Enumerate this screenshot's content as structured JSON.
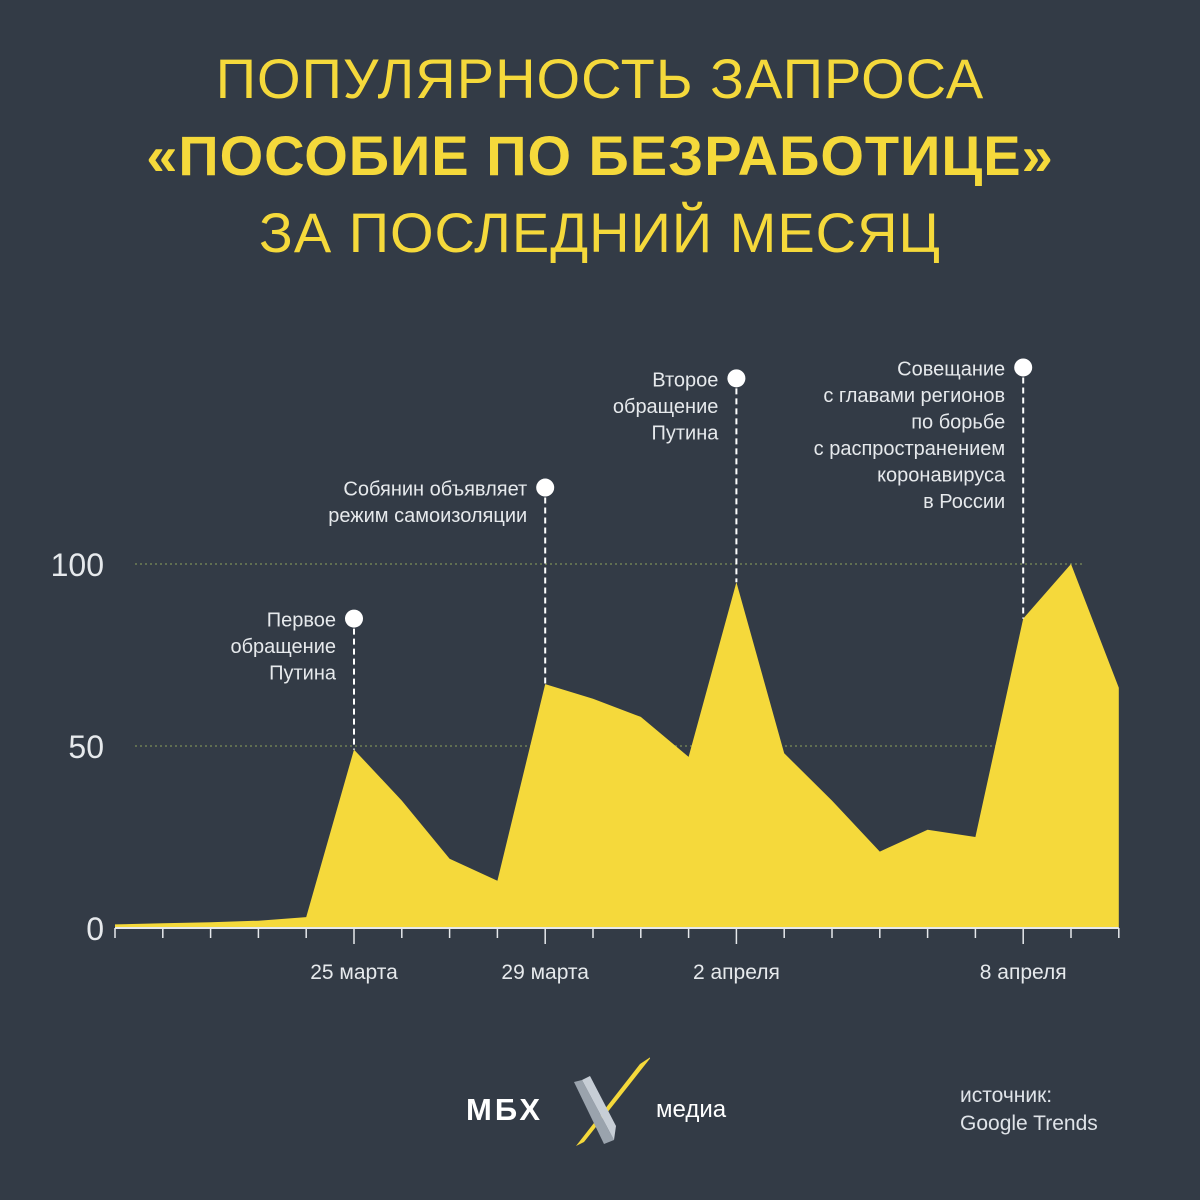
{
  "title": {
    "line1": "Популярность запроса",
    "line2": "«Пособие по безработице»",
    "line3": "за последний месяц"
  },
  "colors": {
    "background": "#333b46",
    "accent": "#f5d93b",
    "gridline": "#6f7f55",
    "text": "#e6e9ec"
  },
  "chart_data": {
    "type": "area",
    "ylim": [
      0,
      100
    ],
    "grid": true,
    "y_ticks": [
      {
        "value": 0,
        "label": "0"
      },
      {
        "value": 50,
        "label": "50"
      },
      {
        "value": 100,
        "label": "100"
      }
    ],
    "x_ticks": [
      {
        "day": 5,
        "label": "25 марта"
      },
      {
        "day": 9,
        "label": "29 марта"
      },
      {
        "day": 13,
        "label": "2 апреля"
      },
      {
        "day": 19,
        "label": "8 апреля"
      }
    ],
    "values": [
      {
        "day": 0,
        "value": 1
      },
      {
        "day": 1,
        "value": 1.3
      },
      {
        "day": 2,
        "value": 1.6
      },
      {
        "day": 3,
        "value": 2
      },
      {
        "day": 4,
        "value": 3
      },
      {
        "day": 5,
        "value": 49
      },
      {
        "day": 6,
        "value": 35
      },
      {
        "day": 7,
        "value": 19
      },
      {
        "day": 8,
        "value": 13
      },
      {
        "day": 9,
        "value": 67
      },
      {
        "day": 10,
        "value": 63
      },
      {
        "day": 11,
        "value": 58
      },
      {
        "day": 12,
        "value": 47
      },
      {
        "day": 13,
        "value": 95
      },
      {
        "day": 14,
        "value": 48
      },
      {
        "day": 15,
        "value": 35
      },
      {
        "day": 16,
        "value": 21
      },
      {
        "day": 17,
        "value": 27
      },
      {
        "day": 18,
        "value": 25
      },
      {
        "day": 19,
        "value": 85
      },
      {
        "day": 20,
        "value": 100
      },
      {
        "day": 21,
        "value": 66
      }
    ],
    "annotations": [
      {
        "day": 5,
        "value": 85,
        "lines": [
          "Первое",
          "обращение",
          "Путина"
        ]
      },
      {
        "day": 9,
        "value": 121,
        "lines": [
          "Собянин объявляет",
          "режим самоизоляции"
        ]
      },
      {
        "day": 13,
        "value": 151,
        "lines": [
          "Второе",
          "обращение",
          "Путина"
        ]
      },
      {
        "day": 19,
        "value": 154,
        "lines": [
          "Совещание",
          "с главами регионов",
          "по борьбе",
          "с распространением",
          "коронавируса",
          "в России"
        ]
      }
    ]
  },
  "footer": {
    "logo_left": "МБХ",
    "logo_right": "медиа",
    "source_line1": "источник:",
    "source_line2": "Google Trends"
  }
}
